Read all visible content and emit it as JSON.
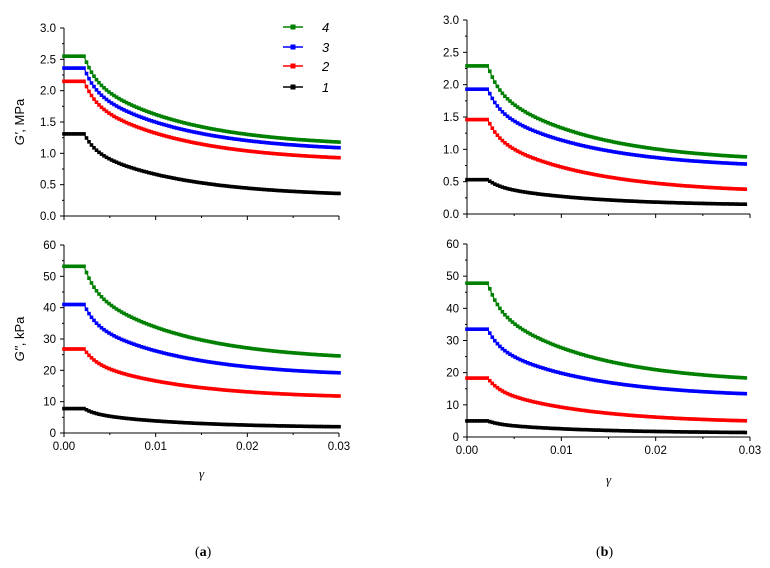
{
  "colors": {
    "s1": "#000000",
    "s2": "#ff0000",
    "s3": "#0000ff",
    "s4": "#008000"
  },
  "legend": [
    {
      "label": "4",
      "series": "s4"
    },
    {
      "label": "3",
      "series": "s3"
    },
    {
      "label": "2",
      "series": "s2"
    },
    {
      "label": "1",
      "series": "s1"
    }
  ],
  "captions": {
    "a": {
      "open": "(",
      "letter": "a",
      "close": ")"
    },
    "b": {
      "open": "(",
      "letter": "b",
      "close": ")"
    }
  },
  "chart_data": [
    {
      "type": "line",
      "id": "a-top",
      "panel": "a",
      "title": "",
      "ylabel_italic": "G'",
      "ylabel_rest": ", MPa",
      "xlabel": "",
      "xlim": [
        0,
        0.03
      ],
      "ylim": [
        0,
        3.0
      ],
      "yticks": [
        "0.0",
        "0.5",
        "1.0",
        "1.5",
        "2.0",
        "2.5",
        "3.0"
      ],
      "xticks": [],
      "series": [
        {
          "name": "1",
          "color": "s1",
          "plateau": 1.31,
          "end": 0.36,
          "xmax": 0.03
        },
        {
          "name": "2",
          "color": "s2",
          "plateau": 2.15,
          "end": 0.93,
          "xmax": 0.03
        },
        {
          "name": "3",
          "color": "s3",
          "plateau": 2.36,
          "end": 1.09,
          "xmax": 0.03
        },
        {
          "name": "4",
          "color": "s4",
          "plateau": 2.55,
          "end": 1.18,
          "xmax": 0.03
        }
      ]
    },
    {
      "type": "line",
      "id": "a-bot",
      "panel": "a",
      "title": "",
      "ylabel_italic": "G''",
      "ylabel_rest": ", kPa",
      "xlabel": "γ",
      "xlim": [
        0,
        0.03
      ],
      "ylim": [
        0,
        60
      ],
      "yticks": [
        "0",
        "10",
        "20",
        "30",
        "40",
        "50",
        "60"
      ],
      "xticks": [
        "0.00",
        "0.01",
        "0.02",
        "0.03"
      ],
      "series": [
        {
          "name": "1",
          "color": "s1",
          "plateau": 7.8,
          "end": 2.0,
          "xmax": 0.03
        },
        {
          "name": "2",
          "color": "s2",
          "plateau": 26.8,
          "end": 11.8,
          "xmax": 0.03
        },
        {
          "name": "3",
          "color": "s3",
          "plateau": 41.0,
          "end": 19.2,
          "xmax": 0.03
        },
        {
          "name": "4",
          "color": "s4",
          "plateau": 53.2,
          "end": 24.6,
          "xmax": 0.03
        }
      ]
    },
    {
      "type": "line",
      "id": "b-top",
      "panel": "b",
      "title": "",
      "ylabel_italic": "",
      "ylabel_rest": "",
      "xlabel": "",
      "xlim": [
        0,
        0.03
      ],
      "ylim": [
        0,
        3.0
      ],
      "yticks": [
        "0.0",
        "0.5",
        "1.0",
        "1.5",
        "2.0",
        "2.5",
        "3.0"
      ],
      "xticks": [],
      "series": [
        {
          "name": "1",
          "color": "s1",
          "plateau": 0.53,
          "end": 0.15,
          "xmax": 0.0295
        },
        {
          "name": "2",
          "color": "s2",
          "plateau": 1.46,
          "end": 0.38,
          "xmax": 0.0295
        },
        {
          "name": "3",
          "color": "s3",
          "plateau": 1.93,
          "end": 0.77,
          "xmax": 0.0295
        },
        {
          "name": "4",
          "color": "s4",
          "plateau": 2.29,
          "end": 0.88,
          "xmax": 0.0295
        }
      ]
    },
    {
      "type": "line",
      "id": "b-bot",
      "panel": "b",
      "title": "",
      "ylabel_italic": "",
      "ylabel_rest": "",
      "xlabel": "γ",
      "xlim": [
        0,
        0.03
      ],
      "ylim": [
        0,
        60
      ],
      "yticks": [
        "0",
        "10",
        "20",
        "30",
        "40",
        "50",
        "60"
      ],
      "xticks": [
        "0.00",
        "0.01",
        "0.02",
        "0.03"
      ],
      "series": [
        {
          "name": "1",
          "color": "s1",
          "plateau": 5.0,
          "end": 1.4,
          "xmax": 0.0295
        },
        {
          "name": "2",
          "color": "s2",
          "plateau": 18.3,
          "end": 5.0,
          "xmax": 0.0295
        },
        {
          "name": "3",
          "color": "s3",
          "plateau": 33.5,
          "end": 13.4,
          "xmax": 0.0295
        },
        {
          "name": "4",
          "color": "s4",
          "plateau": 47.8,
          "end": 18.3,
          "xmax": 0.0295
        }
      ]
    }
  ]
}
